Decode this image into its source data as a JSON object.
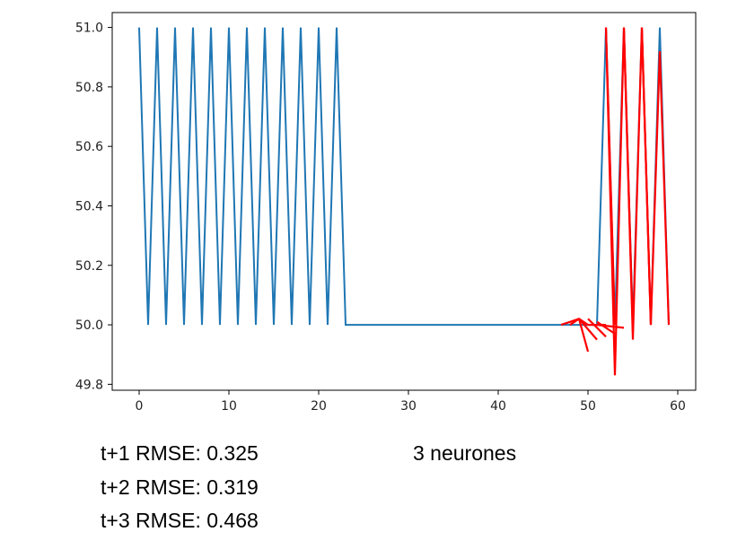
{
  "chart_data": {
    "type": "line",
    "xlim": [
      -3,
      62
    ],
    "ylim": [
      49.78,
      51.05
    ],
    "xticks": [
      0,
      10,
      20,
      30,
      40,
      50,
      60
    ],
    "yticks": [
      49.8,
      50.0,
      50.2,
      50.4,
      50.6,
      50.8,
      51.0
    ],
    "grid": false,
    "series": [
      {
        "color": "#1f77b4",
        "x": [
          0,
          1,
          2,
          3,
          4,
          5,
          6,
          7,
          8,
          9,
          10,
          11,
          12,
          13,
          14,
          15,
          16,
          17,
          18,
          19,
          20,
          21,
          22,
          23,
          24,
          25,
          26,
          27,
          28,
          29,
          30,
          31,
          32,
          33,
          34,
          35,
          36,
          37,
          38,
          39,
          40,
          41,
          42,
          43,
          44,
          45,
          46,
          47,
          48,
          49,
          50,
          51,
          52,
          53,
          54,
          55,
          56,
          57,
          58,
          59
        ],
        "y": [
          51,
          50,
          51,
          50,
          51,
          50,
          51,
          50,
          51,
          50,
          51,
          50,
          51,
          50,
          51,
          50,
          51,
          50,
          51,
          50,
          51,
          50,
          51,
          50,
          50,
          50,
          50,
          50,
          50,
          50,
          50,
          50,
          50,
          50,
          50,
          50,
          50,
          50,
          50,
          50,
          50,
          50,
          50,
          50,
          50,
          50,
          50,
          50,
          50,
          50,
          50,
          50,
          51,
          50,
          51,
          50,
          51,
          50,
          51,
          50
        ]
      },
      {
        "color": "#ff0000",
        "segments": [
          {
            "x": [
              47,
              48,
              49,
              50,
              51,
              52
            ],
            "y": [
              50.0,
              50.01,
              50.02,
              50.0,
              50.0,
              50.0
            ]
          },
          {
            "x": [
              48,
              49
            ],
            "y": [
              50.0,
              50.02
            ]
          },
          {
            "x": [
              49,
              50
            ],
            "y": [
              50.02,
              49.91
            ]
          },
          {
            "x": [
              49,
              51
            ],
            "y": [
              50.02,
              49.95
            ]
          },
          {
            "x": [
              50,
              52
            ],
            "y": [
              50.02,
              49.96
            ]
          },
          {
            "x": [
              51,
              53
            ],
            "y": [
              50.01,
              49.97
            ]
          },
          {
            "x": [
              51,
              54
            ],
            "y": [
              50.0,
              49.99
            ]
          },
          {
            "x": [
              52,
              53,
              54,
              55,
              56,
              57,
              58,
              59
            ],
            "y": [
              51.0,
              49.83,
              51.0,
              49.95,
              51.0,
              50.0,
              50.92,
              50.0
            ]
          },
          {
            "x": [
              52,
              53
            ],
            "y": [
              51.0,
              50.0
            ]
          },
          {
            "x": [
              54,
              55
            ],
            "y": [
              51.0,
              49.98
            ]
          },
          {
            "x": [
              56,
              57
            ],
            "y": [
              51.0,
              50.0
            ]
          }
        ]
      }
    ]
  },
  "captions": {
    "rmse_t1": "t+1 RMSE: 0.325",
    "rmse_t2": "t+2 RMSE: 0.319",
    "rmse_t3": "t+3 RMSE: 0.468",
    "neurons": "3 neurones"
  }
}
